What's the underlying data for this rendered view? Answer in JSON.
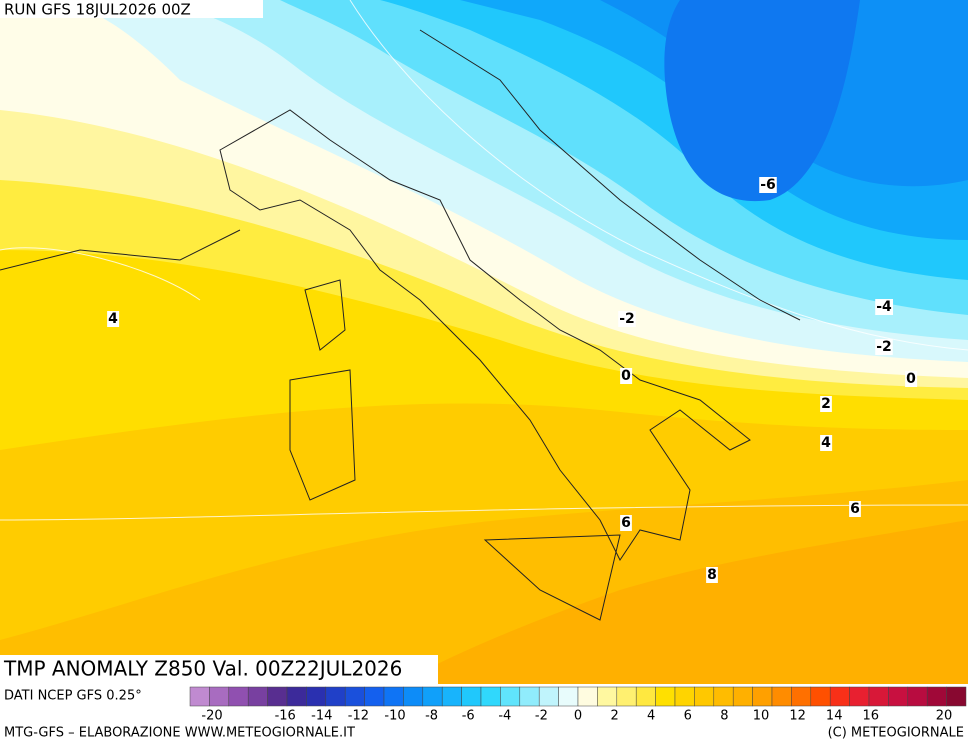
{
  "header": {
    "run": "RUN GFS 18JUL2026 00Z"
  },
  "map": {
    "contour_labels": [
      -6,
      -4,
      -2,
      0,
      -2,
      0,
      2,
      4,
      4,
      6,
      6,
      8
    ]
  },
  "title": "TMP ANOMALY Z850 Val. 00Z22JUL2026",
  "source": "DATI NCEP GFS 0.25°",
  "colorbar": {
    "colors": [
      "#c08ad0",
      "#a86cc0",
      "#9050b0",
      "#7840a0",
      "#582e90",
      "#3c2a9a",
      "#2a30b0",
      "#2040c8",
      "#1a50dc",
      "#1460ee",
      "#0f74f5",
      "#0d8cf8",
      "#10a0fa",
      "#18b4fc",
      "#20c8fc",
      "#30d8fc",
      "#60e4fc",
      "#90ecfc",
      "#c0f4fc",
      "#e8fcfc",
      "#fffce0",
      "#fff8a0",
      "#fff070",
      "#ffe840",
      "#ffe000",
      "#ffd400",
      "#ffc800",
      "#ffbc00",
      "#ffb000",
      "#ffa000",
      "#ff8c00",
      "#ff7000",
      "#ff5000",
      "#f83018",
      "#e82030",
      "#d81838",
      "#c81040",
      "#b80c40",
      "#a00838",
      "#880830"
    ],
    "labels": [
      -20,
      -16,
      -14,
      -12,
      -10,
      -8,
      -6,
      -4,
      -2,
      0,
      2,
      4,
      6,
      8,
      10,
      12,
      14,
      16,
      20
    ]
  },
  "footer": {
    "left": "MTG-GFS – ELABORAZIONE WWW.METEOGIORNALE.IT",
    "right": "(C) METEOGIORNALE"
  }
}
